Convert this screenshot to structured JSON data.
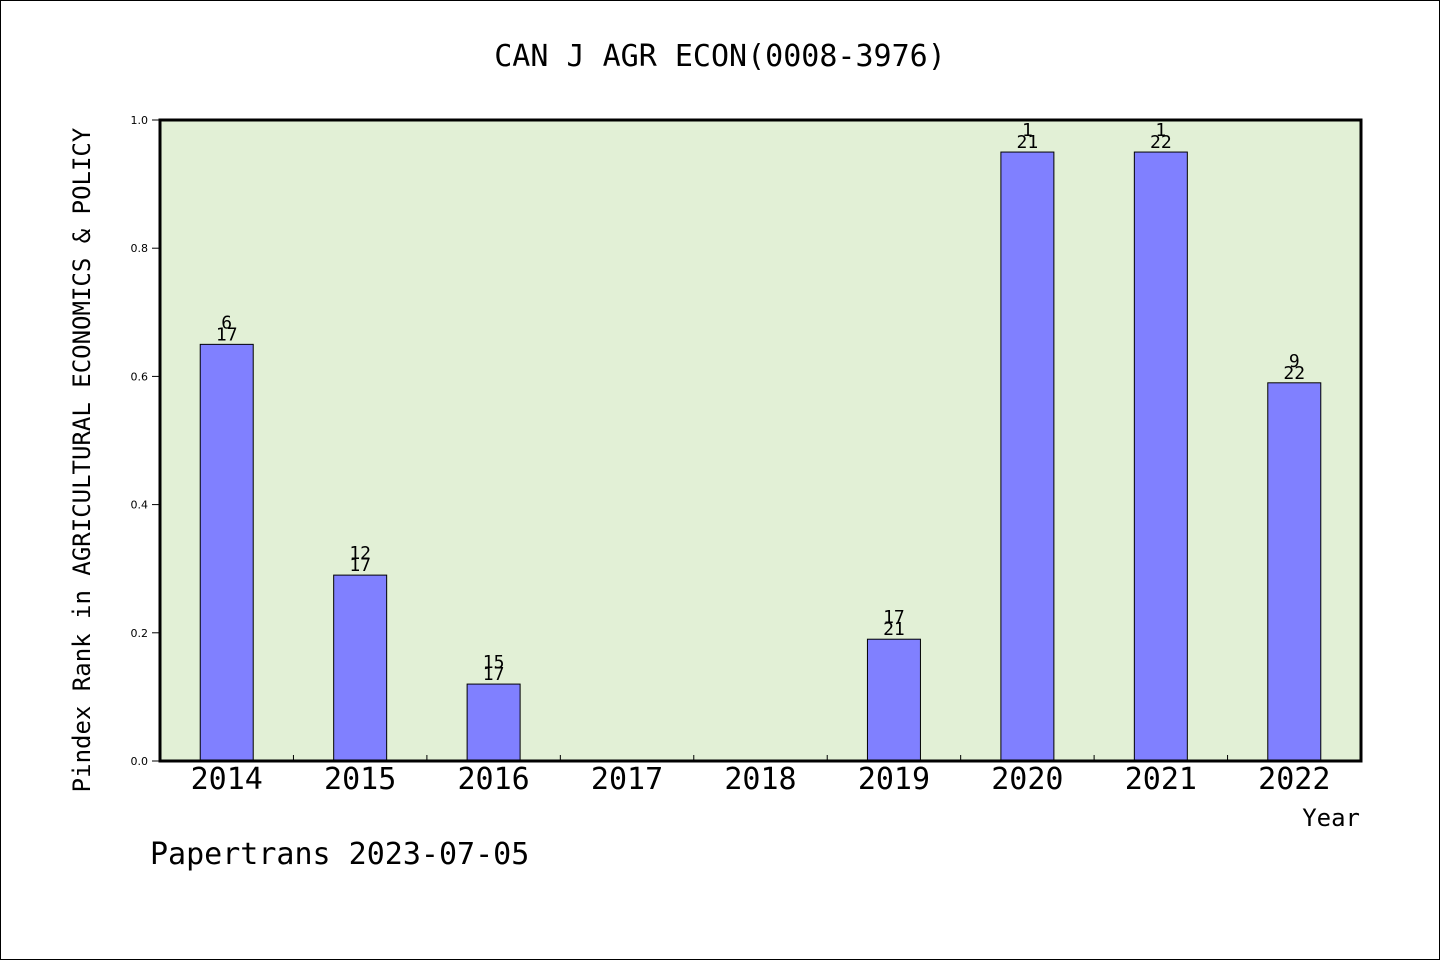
{
  "chart_data": {
    "type": "bar",
    "title": "CAN J AGR ECON(0008-3976)",
    "xlabel": "Year",
    "ylabel": "Pindex Rank in AGRICULTURAL ECONOMICS & POLICY",
    "ylim": [
      0,
      1
    ],
    "yticks": [
      "0.0",
      "0.2",
      "0.4",
      "0.6",
      "0.8",
      "1.0"
    ],
    "categories": [
      "2014",
      "2015",
      "2016",
      "2017",
      "2018",
      "2019",
      "2020",
      "2021",
      "2022"
    ],
    "values": [
      0.65,
      0.29,
      0.12,
      null,
      null,
      0.19,
      0.95,
      0.95,
      0.59
    ],
    "rank": [
      "6",
      "12",
      "15",
      "",
      "",
      "17",
      "1",
      "1",
      "9"
    ],
    "total": [
      "17",
      "17",
      "17",
      "",
      "",
      "21",
      "21",
      "22",
      "22"
    ],
    "grid": false,
    "colors": {
      "bar": "#8080ff",
      "plot_background": "#e2f0d6"
    }
  },
  "footer": "Papertrans 2023-07-05"
}
